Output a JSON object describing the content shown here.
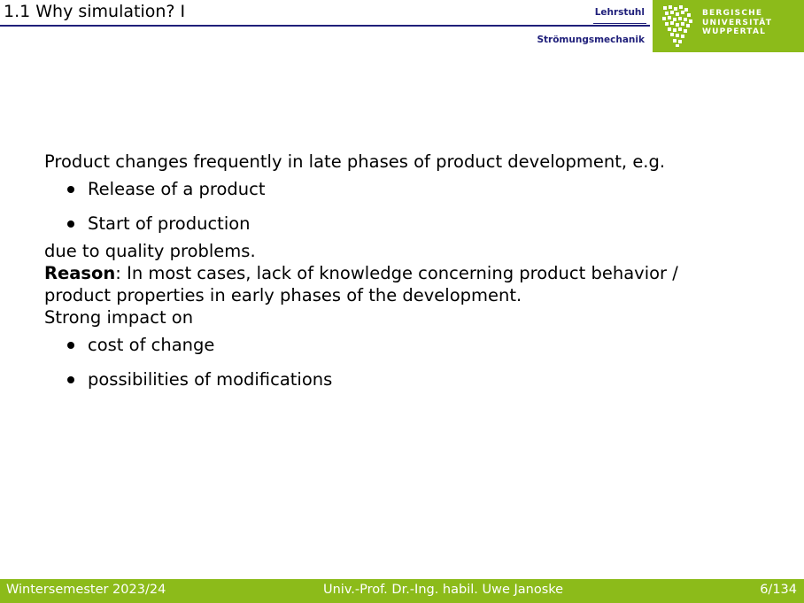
{
  "header": {
    "title": "1.1 Why simulation? I",
    "chair_line1": "Lehrstuhl",
    "chair_line2": "Strömungsmechanik",
    "university_lines": [
      "BERGISCHE",
      "UNIVERSITÄT",
      "WUPPERTAL"
    ],
    "rule_color": "#1f1f7a"
  },
  "content": {
    "intro": "Product changes frequently in late phases of product development, e.g.",
    "bullets1": [
      "Release of a product",
      "Start of production"
    ],
    "after_bullets": "due to quality problems.",
    "reason_label": "Reason",
    "reason_line1": ": In most cases, lack of knowledge concerning product behavior /",
    "reason_line2": "product properties in early phases of the development.",
    "impact": "Strong impact on",
    "bullets2": [
      "cost of change",
      "possibilities of modifications"
    ]
  },
  "footer": {
    "left": "Wintersemester 2023/24",
    "center": "Univ.-Prof. Dr.-Ing. habil. Uwe Janoske",
    "right": "6/134"
  },
  "colors": {
    "brand_green": "#8cbb1a",
    "navy": "#1f1f7a",
    "text": "#000000"
  },
  "icons": {
    "logo": "wuppertal-lion-logo-icon",
    "bullet": "bullet-dot-icon"
  }
}
